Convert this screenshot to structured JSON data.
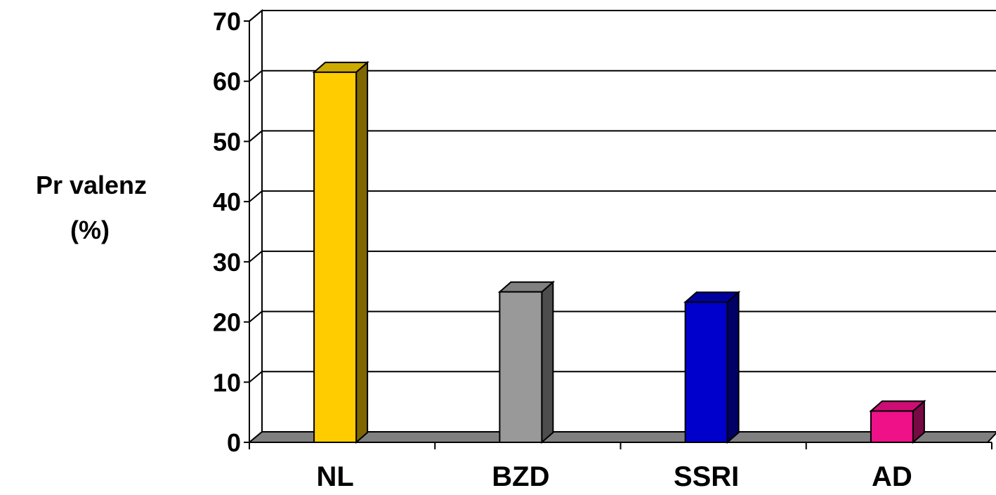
{
  "chart_data": {
    "type": "bar",
    "style": "3d",
    "categories": [
      "NL",
      "BZD",
      "SSRI",
      "AD"
    ],
    "values": [
      61.5,
      25,
      23.3,
      5.2
    ],
    "ylabel_lines": [
      "Pr   valenz",
      "(%)"
    ],
    "ylim": [
      0,
      70
    ],
    "yticks": [
      "0",
      "10",
      "20",
      "30",
      "40",
      "50",
      "60",
      "70"
    ],
    "grid": true,
    "legend": "none",
    "colors": {
      "bars": [
        {
          "front": "#ffcc00",
          "side": "#806600",
          "top": "#ccaa00"
        },
        {
          "front": "#999999",
          "side": "#4d4d4d",
          "top": "#808080"
        },
        {
          "front": "#0000cc",
          "side": "#000066",
          "top": "#0000a0"
        },
        {
          "front": "#ee1188",
          "side": "#770944",
          "top": "#cc0e74"
        }
      ],
      "floor": "#808080"
    }
  }
}
